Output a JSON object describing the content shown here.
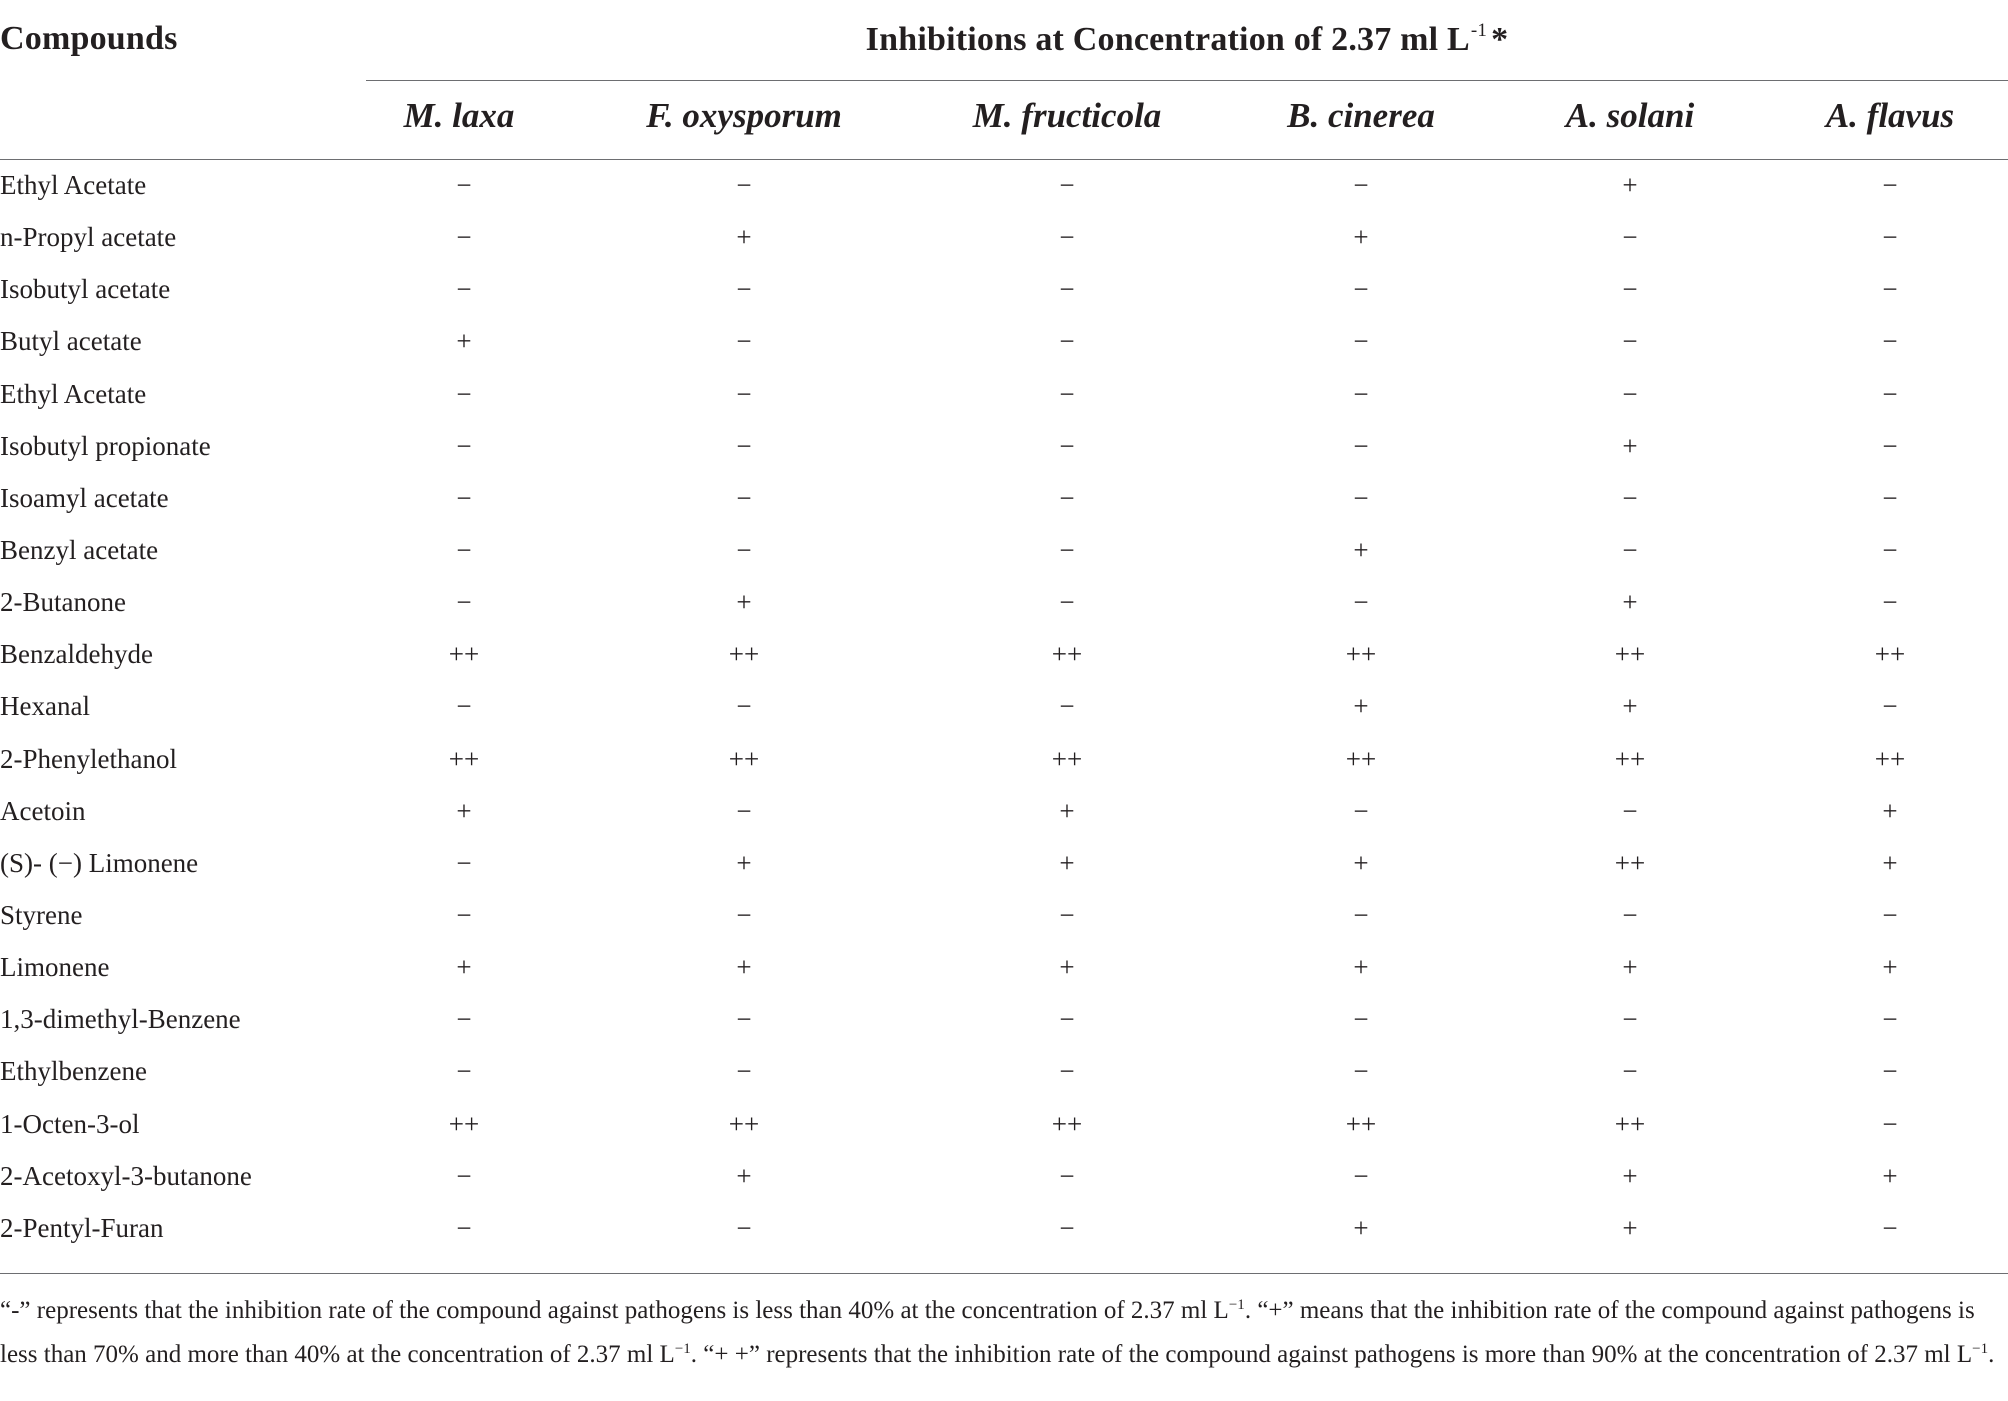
{
  "header": {
    "compounds_label": "Compounds",
    "group_title_prefix": "Inhibitions at Concentration of 2.37 ml L",
    "group_title_sup": "-1",
    "group_title_suffix": "*",
    "species": [
      "M. laxa",
      "F. oxysporum",
      "M. fructicola",
      "B. cinerea",
      "A. solani",
      "A. flavus"
    ]
  },
  "rows": [
    {
      "compound": "Ethyl Acetate",
      "values": [
        "−",
        "−",
        "−",
        "−",
        "+",
        "−"
      ]
    },
    {
      "compound": "n-Propyl acetate",
      "values": [
        "−",
        "+",
        "−",
        "+",
        "−",
        "−"
      ]
    },
    {
      "compound": "Isobutyl acetate",
      "values": [
        "−",
        "−",
        "−",
        "−",
        "−",
        "−"
      ]
    },
    {
      "compound": "Butyl acetate",
      "values": [
        "+",
        "−",
        "−",
        "−",
        "−",
        "−"
      ]
    },
    {
      "compound": "Ethyl Acetate",
      "values": [
        "−",
        "−",
        "−",
        "−",
        "−",
        "−"
      ]
    },
    {
      "compound": "Isobutyl propionate",
      "values": [
        "−",
        "−",
        "−",
        "−",
        "+",
        "−"
      ]
    },
    {
      "compound": "Isoamyl acetate",
      "values": [
        "−",
        "−",
        "−",
        "−",
        "−",
        "−"
      ]
    },
    {
      "compound": "Benzyl acetate",
      "values": [
        "−",
        "−",
        "−",
        "+",
        "−",
        "−"
      ]
    },
    {
      "compound": "2-Butanone",
      "values": [
        "−",
        "+",
        "−",
        "−",
        "+",
        "−"
      ]
    },
    {
      "compound": "Benzaldehyde",
      "values": [
        "++",
        "++",
        "++",
        "++",
        "++",
        "++"
      ]
    },
    {
      "compound": "Hexanal",
      "values": [
        "−",
        "−",
        "−",
        "+",
        "+",
        "−"
      ]
    },
    {
      "compound": "2-Phenylethanol",
      "values": [
        "++",
        "++",
        "++",
        "++",
        "++",
        "++"
      ]
    },
    {
      "compound": "Acetoin",
      "values": [
        "+",
        "−",
        "+",
        "−",
        "−",
        "+"
      ]
    },
    {
      "compound": "(S)- (−) Limonene",
      "values": [
        "−",
        "+",
        "+",
        "+",
        "++",
        "+"
      ]
    },
    {
      "compound": "Styrene",
      "values": [
        "−",
        "−",
        "−",
        "−",
        "−",
        "−"
      ]
    },
    {
      "compound": "Limonene",
      "values": [
        "+",
        "+",
        "+",
        "+",
        "+",
        "+"
      ]
    },
    {
      "compound": "1,3-dimethyl-Benzene",
      "values": [
        "−",
        "−",
        "−",
        "−",
        "−",
        "−"
      ]
    },
    {
      "compound": "Ethylbenzene",
      "values": [
        "−",
        "−",
        "−",
        "−",
        "−",
        "−"
      ]
    },
    {
      "compound": "1-Octen-3-ol",
      "values": [
        "++",
        "++",
        "++",
        "++",
        "++",
        "−"
      ]
    },
    {
      "compound": "2-Acetoxyl-3-butanone",
      "values": [
        "−",
        "+",
        "−",
        "−",
        "+",
        "+"
      ]
    },
    {
      "compound": "2-Pentyl-Furan",
      "values": [
        "−",
        "−",
        "−",
        "+",
        "+",
        "−"
      ]
    }
  ],
  "footnote": {
    "s1": "“-” represents that the inhibition rate of the compound against pathogens is less than 40% at the concentration of 2.37 ml L",
    "sup1": "−1",
    "s2": ". “+” means that the inhibition rate of the compound against pathogens is less than 70% and more than 40% at the concentration of 2.37 ml L",
    "sup2": "−1",
    "s3": ". “+ +” represents that the inhibition rate of the compound against pathogens is more than 90% at the concentration of 2.37 ml L",
    "sup3": "−1",
    "s4": "."
  }
}
